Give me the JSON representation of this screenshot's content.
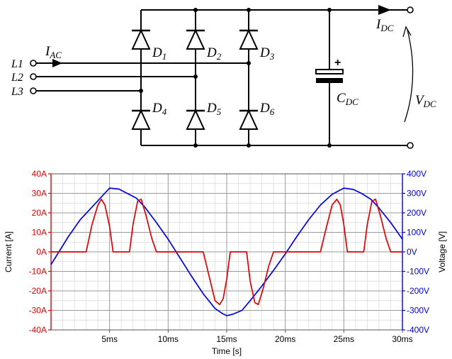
{
  "circuit": {
    "inputs": [
      "L1",
      "L2",
      "L3"
    ],
    "input_current": {
      "main": "I",
      "sub": "AC"
    },
    "output_current": {
      "main": "I",
      "sub": "DC"
    },
    "output_voltage": {
      "main": "V",
      "sub": "DC"
    },
    "capacitor": {
      "main": "C",
      "sub": "DC",
      "polarity": "+"
    },
    "diodes": [
      {
        "main": "D",
        "sub": "1"
      },
      {
        "main": "D",
        "sub": "2"
      },
      {
        "main": "D",
        "sub": "3"
      },
      {
        "main": "D",
        "sub": "4"
      },
      {
        "main": "D",
        "sub": "5"
      },
      {
        "main": "D",
        "sub": "6"
      }
    ]
  },
  "chart_data": {
    "type": "line",
    "xlabel": "Time [s]",
    "ylabel_left": "Current [A]",
    "ylabel_right": "Voltage [V]",
    "xlim": [
      0,
      30
    ],
    "ylim_left": [
      -40,
      40
    ],
    "ylim_right": [
      -400,
      400
    ],
    "x_ticks": [
      "5ms",
      "10ms",
      "15ms",
      "20ms",
      "25ms",
      "30ms"
    ],
    "x_tick_values": [
      5,
      10,
      15,
      20,
      25,
      30
    ],
    "y_ticks_left": [
      "40A",
      "30A",
      "20A",
      "10A",
      "0A",
      "-10A",
      "-20A",
      "-30A",
      "-40A"
    ],
    "y_ticks_right": [
      "400V",
      "300V",
      "200V",
      "100V",
      "0V",
      "-100V",
      "-200V",
      "-300V",
      "-400V"
    ],
    "grid": true,
    "colors": {
      "current": "#e00000",
      "voltage": "#0000e0",
      "left_axis": "#e00000",
      "right_axis": "#0000e0"
    },
    "series": [
      {
        "axis": "right",
        "color": "#0000e0",
        "x": [
          0,
          1.5,
          2.5,
          3.5,
          4.2,
          5.0,
          5.8,
          6.5,
          7.3,
          8.0,
          9.0,
          10.0,
          11.0,
          12.0,
          13.0,
          14.0,
          14.6,
          15.0,
          15.5,
          16.3,
          17.0,
          18.0,
          19.0,
          20.0,
          21.0,
          22.0,
          23.0,
          24.0,
          25.0,
          25.8,
          26.5,
          27.3,
          28.0,
          29.0,
          30.0
        ],
        "y": [
          -65,
          80,
          165,
          230,
          275,
          327,
          322,
          300,
          275,
          230,
          150,
          65,
          -30,
          -125,
          -215,
          -290,
          -315,
          -327,
          -320,
          -300,
          -250,
          -175,
          -95,
          -10,
          80,
          165,
          240,
          295,
          327,
          320,
          300,
          270,
          225,
          150,
          65
        ]
      },
      {
        "axis": "left",
        "color": "#e00000",
        "x": [
          0,
          3.0,
          3.5,
          4.0,
          4.3,
          4.6,
          5.0,
          5.3,
          6.7,
          7.0,
          7.4,
          7.7,
          8.1,
          8.6,
          9.0,
          13.0,
          13.4,
          14.0,
          14.4,
          14.7,
          15.0,
          15.3,
          16.7,
          17.0,
          17.4,
          17.7,
          18.1,
          18.6,
          19.0,
          23.0,
          23.4,
          24.0,
          24.4,
          24.7,
          25.0,
          25.3,
          26.7,
          27.0,
          27.4,
          27.7,
          28.1,
          28.6,
          29.0,
          30.0
        ],
        "y": [
          0,
          0,
          14,
          24,
          27,
          24,
          13,
          0,
          0,
          14,
          26,
          27,
          19,
          7,
          0,
          0,
          -10,
          -25,
          -27,
          -24,
          -14,
          0,
          0,
          -15,
          -26,
          -27,
          -19,
          -7,
          0,
          0,
          10,
          24,
          27,
          24,
          14,
          0,
          0,
          14,
          26,
          27,
          19,
          7,
          0,
          0
        ]
      }
    ]
  }
}
